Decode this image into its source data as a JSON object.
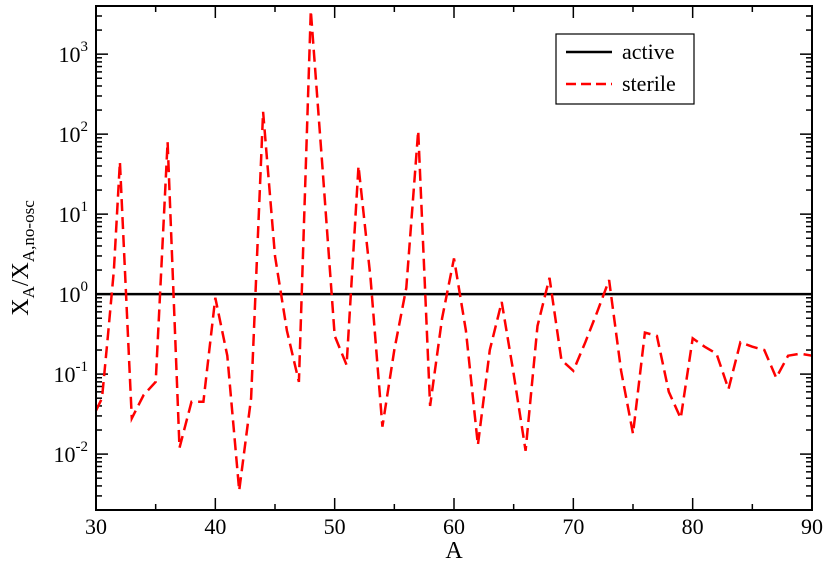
{
  "chart_data": {
    "type": "line",
    "title": "",
    "xlabel": "A",
    "ylabel": {
      "base": "X",
      "sub1": "A",
      "slash": "/X",
      "sub2": "A,no-osc"
    },
    "xlim": [
      30,
      90
    ],
    "ylim": [
      0.002,
      4000
    ],
    "yscale": "log",
    "x_ticks": [
      30,
      40,
      50,
      60,
      70,
      80,
      90
    ],
    "y_ticks": [
      {
        "value": 0.01,
        "base": "10",
        "exp": "-2"
      },
      {
        "value": 0.1,
        "base": "10",
        "exp": "-1"
      },
      {
        "value": 1,
        "base": "10",
        "exp": "0"
      },
      {
        "value": 10,
        "base": "10",
        "exp": "1"
      },
      {
        "value": 100,
        "base": "10",
        "exp": "2"
      },
      {
        "value": 1000,
        "base": "10",
        "exp": "3"
      }
    ],
    "legend_position": "top-right",
    "series": [
      {
        "name": "active",
        "color": "#000000",
        "dash": "solid",
        "x": [
          30,
          90
        ],
        "y": [
          1,
          1
        ]
      },
      {
        "name": "sterile",
        "color": "#ff0000",
        "dash": "dashed",
        "x": [
          30,
          30.5,
          31,
          31.5,
          32,
          33,
          34,
          35,
          36,
          37,
          38,
          39,
          40,
          41,
          42,
          43,
          44,
          45,
          46,
          47,
          48,
          49,
          50,
          51,
          52,
          53,
          54,
          55,
          56,
          57,
          58,
          59,
          60,
          61,
          62,
          63,
          64,
          65,
          66,
          67,
          68,
          69,
          70,
          71,
          72,
          73,
          74,
          75,
          76,
          77,
          78,
          79,
          80,
          81,
          82,
          83,
          84,
          85,
          86,
          87,
          88,
          89,
          90
        ],
        "y": [
          0.035,
          0.05,
          0.3,
          2.0,
          45,
          0.028,
          0.055,
          0.08,
          80,
          0.012,
          0.045,
          0.045,
          0.9,
          0.17,
          0.0035,
          0.05,
          190,
          3.0,
          0.35,
          0.08,
          3500,
          35,
          0.3,
          0.13,
          40,
          1.6,
          0.022,
          0.2,
          1.2,
          110,
          0.04,
          0.5,
          2.8,
          0.35,
          0.013,
          0.2,
          0.8,
          0.1,
          0.011,
          0.4,
          1.6,
          0.15,
          0.11,
          0.25,
          0.6,
          1.5,
          0.11,
          0.018,
          0.33,
          0.3,
          0.06,
          0.028,
          0.28,
          0.22,
          0.18,
          0.065,
          0.25,
          0.22,
          0.2,
          0.09,
          0.17,
          0.18,
          0.17
        ]
      }
    ]
  }
}
